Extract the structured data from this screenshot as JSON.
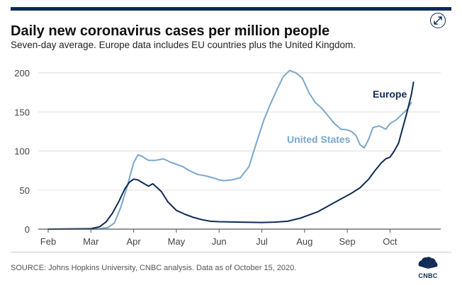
{
  "title": "Daily new coronavirus cases per million people",
  "subtitle": "Seven-day average. Europe data includes EU countries plus the United Kingdom.",
  "source": "SOURCE: Johns Hopkins University, CNBC analysis. Data as of October 15, 2020.",
  "logo_text": "CNBC",
  "icons": {
    "expand": "expand-arrows-icon",
    "logo": "peacock-icon"
  },
  "colors": {
    "us": "#7aa7cd",
    "europe": "#0e2a55",
    "axis": "#555555",
    "grid": "#dddddd"
  },
  "chart_data": {
    "type": "line",
    "title": "Daily new coronavirus cases per million people",
    "xlabel": "",
    "ylabel": "",
    "ylim": [
      0,
      200
    ],
    "yticks": [
      0,
      50,
      100,
      150,
      200
    ],
    "xlim": [
      0,
      8.6
    ],
    "xticks": [
      {
        "label": "Feb",
        "x": 0
      },
      {
        "label": "Mar",
        "x": 1
      },
      {
        "label": "Apr",
        "x": 2
      },
      {
        "label": "May",
        "x": 3
      },
      {
        "label": "Jun",
        "x": 4
      },
      {
        "label": "Jul",
        "x": 5
      },
      {
        "label": "Aug",
        "x": 6
      },
      {
        "label": "Sep",
        "x": 7
      },
      {
        "label": "Oct",
        "x": 8
      }
    ],
    "series": [
      {
        "name": "United States",
        "label": "United States",
        "color": "#7aa7cd",
        "points": [
          [
            0,
            0
          ],
          [
            1,
            0
          ],
          [
            1.2,
            0.5
          ],
          [
            1.4,
            2
          ],
          [
            1.55,
            8
          ],
          [
            1.7,
            28
          ],
          [
            1.85,
            55
          ],
          [
            2.0,
            85
          ],
          [
            2.1,
            95
          ],
          [
            2.2,
            93
          ],
          [
            2.35,
            88
          ],
          [
            2.5,
            88
          ],
          [
            2.7,
            90
          ],
          [
            2.85,
            86
          ],
          [
            3.0,
            83
          ],
          [
            3.15,
            80
          ],
          [
            3.3,
            75
          ],
          [
            3.5,
            70
          ],
          [
            3.7,
            68
          ],
          [
            3.9,
            65
          ],
          [
            4.0,
            63
          ],
          [
            4.1,
            62
          ],
          [
            4.3,
            63
          ],
          [
            4.5,
            66
          ],
          [
            4.7,
            80
          ],
          [
            4.9,
            115
          ],
          [
            5.05,
            140
          ],
          [
            5.2,
            160
          ],
          [
            5.35,
            178
          ],
          [
            5.5,
            195
          ],
          [
            5.65,
            203
          ],
          [
            5.8,
            200
          ],
          [
            5.95,
            193
          ],
          [
            6.1,
            175
          ],
          [
            6.25,
            162
          ],
          [
            6.4,
            155
          ],
          [
            6.55,
            145
          ],
          [
            6.7,
            135
          ],
          [
            6.85,
            128
          ],
          [
            7.0,
            127
          ],
          [
            7.1,
            125
          ],
          [
            7.2,
            120
          ],
          [
            7.3,
            108
          ],
          [
            7.4,
            104
          ],
          [
            7.5,
            115
          ],
          [
            7.6,
            130
          ],
          [
            7.75,
            132
          ],
          [
            7.9,
            128
          ],
          [
            8.0,
            135
          ],
          [
            8.15,
            140
          ],
          [
            8.3,
            148
          ],
          [
            8.4,
            153
          ],
          [
            8.5,
            162
          ]
        ]
      },
      {
        "name": "Europe",
        "label": "Europe",
        "color": "#0e2a55",
        "points": [
          [
            0,
            0
          ],
          [
            1,
            0.5
          ],
          [
            1.2,
            3
          ],
          [
            1.35,
            9
          ],
          [
            1.5,
            20
          ],
          [
            1.65,
            35
          ],
          [
            1.8,
            52
          ],
          [
            1.9,
            60
          ],
          [
            2.0,
            64
          ],
          [
            2.1,
            63
          ],
          [
            2.25,
            58
          ],
          [
            2.35,
            55
          ],
          [
            2.45,
            58
          ],
          [
            2.55,
            53
          ],
          [
            2.65,
            48
          ],
          [
            2.8,
            35
          ],
          [
            3.0,
            24
          ],
          [
            3.2,
            19
          ],
          [
            3.4,
            15
          ],
          [
            3.6,
            12
          ],
          [
            3.8,
            10
          ],
          [
            4.0,
            9.5
          ],
          [
            4.5,
            9
          ],
          [
            5.0,
            8.5
          ],
          [
            5.3,
            9
          ],
          [
            5.6,
            10
          ],
          [
            5.9,
            14
          ],
          [
            6.1,
            18
          ],
          [
            6.3,
            22
          ],
          [
            6.5,
            28
          ],
          [
            6.7,
            34
          ],
          [
            6.9,
            40
          ],
          [
            7.1,
            46
          ],
          [
            7.3,
            53
          ],
          [
            7.5,
            64
          ],
          [
            7.65,
            75
          ],
          [
            7.8,
            85
          ],
          [
            7.9,
            90
          ],
          [
            8.0,
            92
          ],
          [
            8.1,
            100
          ],
          [
            8.2,
            110
          ],
          [
            8.3,
            130
          ],
          [
            8.4,
            150
          ],
          [
            8.5,
            172
          ],
          [
            8.55,
            188
          ]
        ]
      }
    ],
    "annotations": [
      {
        "text": "Europe",
        "series": "Europe"
      },
      {
        "text": "United States",
        "series": "United States"
      }
    ]
  }
}
